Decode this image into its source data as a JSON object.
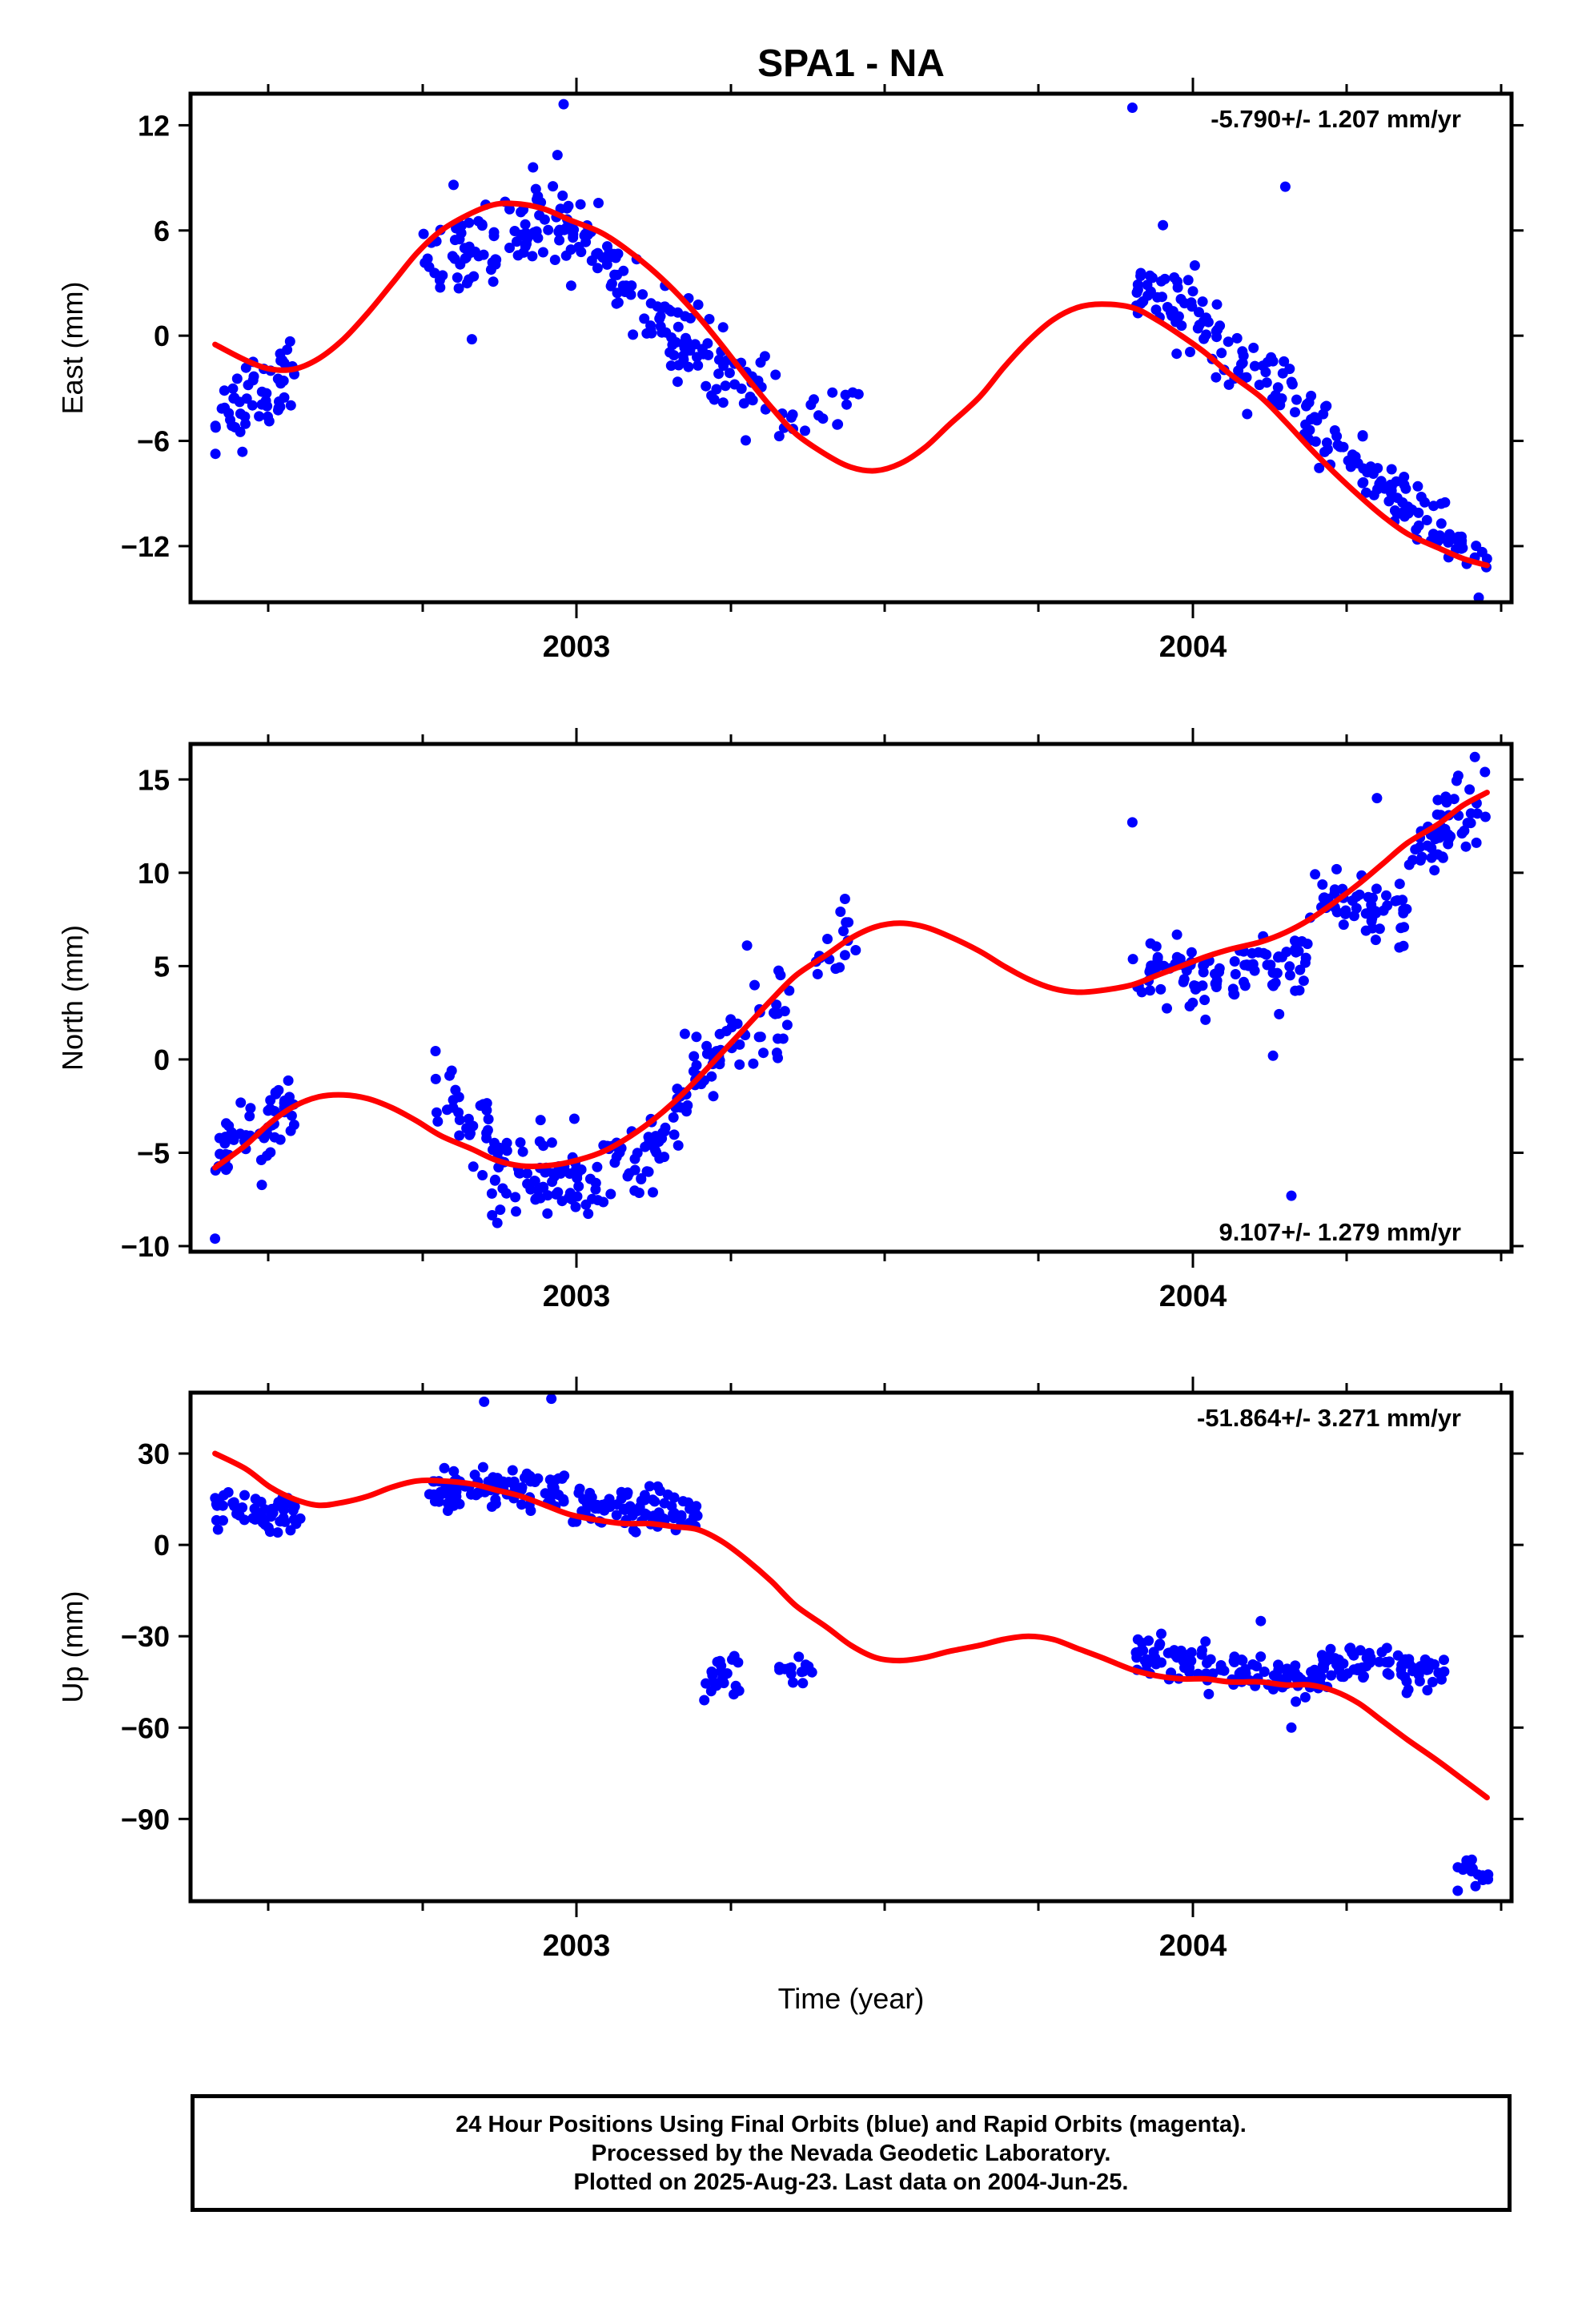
{
  "chart_data": {
    "type": "scatter",
    "title": "SPA1 - NA",
    "xlabel": "Time (year)",
    "x_tick_labels": [
      "2003",
      "2004"
    ],
    "xlim": [
      2002.37,
      2004.53
    ],
    "panels": [
      {
        "name": "east",
        "ylabel": "East (mm)",
        "ylim": [
          -15.2,
          13.8
        ],
        "yticks": [
          12,
          6,
          0,
          -6,
          -12
        ],
        "ytick_labels": [
          "12",
          "6",
          "0",
          "−12"
        ],
        "ytick_labels_full": [
          "12",
          "6",
          "0",
          "−6",
          "−12"
        ],
        "rate_label": "-5.790+/- 1.207 mm/yr",
        "rate_position": "top-right",
        "fit": {
          "x": [
            2002.41,
            2002.46,
            2002.5,
            2002.54,
            2002.58,
            2002.62,
            2002.66,
            2002.7,
            2002.74,
            2002.78,
            2002.83,
            2002.87,
            2002.91,
            2002.95,
            2002.99,
            2003.04,
            2003.08,
            2003.12,
            2003.16,
            2003.2,
            2003.24,
            2003.28,
            2003.32,
            2003.36,
            2003.41,
            2003.45,
            2003.49,
            2003.53,
            2003.57,
            2003.61,
            2003.66,
            2003.7,
            2003.74,
            2003.78,
            2003.82,
            2003.86,
            2003.91,
            2003.95,
            2003.99,
            2004.03,
            2004.07,
            2004.12,
            2004.16,
            2004.2,
            2004.24,
            2004.28,
            2004.32,
            2004.36,
            2004.41,
            2004.45,
            2004.49
          ],
          "y": [
            -0.5,
            -1.4,
            -1.9,
            -1.9,
            -1.3,
            -0.2,
            1.3,
            3.0,
            4.7,
            6.0,
            7.0,
            7.5,
            7.5,
            7.2,
            6.6,
            5.9,
            5.0,
            3.9,
            2.6,
            1.1,
            -0.6,
            -2.4,
            -4.1,
            -5.6,
            -6.8,
            -7.5,
            -7.7,
            -7.3,
            -6.4,
            -5.1,
            -3.5,
            -1.8,
            -0.3,
            0.9,
            1.6,
            1.8,
            1.6,
            0.9,
            0.0,
            -1.0,
            -2.2,
            -3.5,
            -4.9,
            -6.4,
            -7.8,
            -9.1,
            -10.3,
            -11.3,
            -12.1,
            -12.7,
            -13.1
          ]
        },
        "clusters": [
          {
            "x0": 2002.41,
            "x1": 2002.54,
            "y0": -4.8,
            "y1": -1.7,
            "n": 55,
            "sd": 1.6
          },
          {
            "x0": 2002.75,
            "x1": 2002.99,
            "y0": 3.4,
            "y1": 7.2,
            "n": 90,
            "sd": 1.5
          },
          {
            "x0": 2002.99,
            "x1": 2003.2,
            "y0": 6.6,
            "y1": -1.5,
            "n": 90,
            "sd": 1.4
          },
          {
            "x0": 2003.2,
            "x1": 2003.35,
            "y0": -1.5,
            "y1": -4.2,
            "n": 40,
            "sd": 1.6
          },
          {
            "x0": 2003.35,
            "x1": 2003.47,
            "y0": -5.0,
            "y1": -3.8,
            "n": 15,
            "sd": 1.2
          },
          {
            "x0": 2003.91,
            "x1": 2004.03,
            "y0": 3.0,
            "y1": 1.0,
            "n": 45,
            "sd": 1.3
          },
          {
            "x0": 2004.03,
            "x1": 2004.24,
            "y0": 0.0,
            "y1": -6.0,
            "n": 70,
            "sd": 1.4
          },
          {
            "x0": 2004.24,
            "x1": 2004.49,
            "y0": -6.4,
            "y1": -13.2,
            "n": 90,
            "sd": 1.1
          }
        ],
        "outliers": [
          [
            2002.98,
            13.2
          ],
          [
            2003.91,
            13.0
          ],
          [
            2004.16,
            8.5
          ],
          [
            2002.8,
            8.6
          ],
          [
            2002.97,
            10.3
          ],
          [
            2002.93,
            9.6
          ],
          [
            2003.96,
            6.3
          ],
          [
            2002.83,
            -0.2
          ]
        ]
      },
      {
        "name": "north",
        "ylabel": "North (mm)",
        "ylim": [
          -10.3,
          16.9
        ],
        "yticks": [
          15,
          10,
          5,
          0,
          -5,
          -10
        ],
        "ytick_labels_full": [
          "15",
          "10",
          "5",
          "0",
          "−5",
          "−10"
        ],
        "rate_label": "9.107+/- 1.279 mm/yr",
        "rate_position": "bottom-right",
        "fit": {
          "x": [
            2002.41,
            2002.46,
            2002.5,
            2002.54,
            2002.58,
            2002.62,
            2002.66,
            2002.7,
            2002.74,
            2002.78,
            2002.83,
            2002.87,
            2002.91,
            2002.95,
            2002.99,
            2003.04,
            2003.08,
            2003.12,
            2003.16,
            2003.2,
            2003.24,
            2003.28,
            2003.32,
            2003.36,
            2003.41,
            2003.45,
            2003.49,
            2003.53,
            2003.57,
            2003.61,
            2003.66,
            2003.7,
            2003.74,
            2003.78,
            2003.82,
            2003.86,
            2003.91,
            2003.95,
            2003.99,
            2004.03,
            2004.07,
            2004.12,
            2004.16,
            2004.2,
            2004.24,
            2004.28,
            2004.32,
            2004.36,
            2004.41,
            2004.45,
            2004.49
          ],
          "y": [
            -5.8,
            -4.6,
            -3.4,
            -2.5,
            -2.0,
            -1.9,
            -2.1,
            -2.6,
            -3.3,
            -4.1,
            -4.8,
            -5.4,
            -5.7,
            -5.7,
            -5.5,
            -5.0,
            -4.3,
            -3.4,
            -2.3,
            -1.0,
            0.4,
            1.8,
            3.2,
            4.5,
            5.6,
            6.5,
            7.1,
            7.3,
            7.1,
            6.6,
            5.8,
            5.0,
            4.3,
            3.8,
            3.6,
            3.7,
            4.0,
            4.5,
            5.0,
            5.5,
            5.9,
            6.3,
            6.8,
            7.5,
            8.4,
            9.4,
            10.5,
            11.6,
            12.6,
            13.6,
            14.3
          ]
        },
        "clusters": [
          {
            "x0": 2002.41,
            "x1": 2002.54,
            "y0": -5.5,
            "y1": -2.5,
            "n": 55,
            "sd": 1.4
          },
          {
            "x0": 2002.76,
            "x1": 2002.86,
            "y0": -2.4,
            "y1": -3.8,
            "n": 30,
            "sd": 1.3
          },
          {
            "x0": 2002.86,
            "x1": 2003.02,
            "y0": -6.5,
            "y1": -6.0,
            "n": 70,
            "sd": 1.6
          },
          {
            "x0": 2003.02,
            "x1": 2003.16,
            "y0": -6.5,
            "y1": -4.2,
            "n": 50,
            "sd": 1.3
          },
          {
            "x0": 2003.16,
            "x1": 2003.26,
            "y0": -3.0,
            "y1": 1.5,
            "n": 40,
            "sd": 1.5
          },
          {
            "x0": 2003.26,
            "x1": 2003.35,
            "y0": 1.5,
            "y1": 2.5,
            "n": 25,
            "sd": 1.4
          },
          {
            "x0": 2003.39,
            "x1": 2003.46,
            "y0": 5.0,
            "y1": 6.5,
            "n": 15,
            "sd": 1.2
          },
          {
            "x0": 2003.91,
            "x1": 2004.03,
            "y0": 5.0,
            "y1": 4.0,
            "n": 45,
            "sd": 1.2
          },
          {
            "x0": 2004.03,
            "x1": 2004.2,
            "y0": 4.5,
            "y1": 5.5,
            "n": 55,
            "sd": 1.3
          },
          {
            "x0": 2004.2,
            "x1": 2004.36,
            "y0": 8.5,
            "y1": 8.0,
            "n": 55,
            "sd": 1.3
          },
          {
            "x0": 2004.36,
            "x1": 2004.49,
            "y0": 10.5,
            "y1": 14.5,
            "n": 50,
            "sd": 1.2
          }
        ],
        "outliers": [
          [
            2002.41,
            -9.6
          ],
          [
            2003.91,
            12.7
          ],
          [
            2004.17,
            -7.3
          ],
          [
            2004.14,
            0.2
          ],
          [
            2003.44,
            8.6
          ],
          [
            2003.28,
            6.1
          ],
          [
            2004.47,
            16.2
          ],
          [
            2004.31,
            14.0
          ]
        ]
      },
      {
        "name": "up",
        "ylabel": "Up (mm)",
        "ylim": [
          -117,
          50
        ],
        "yticks": [
          30,
          0,
          -30,
          -60,
          -90
        ],
        "ytick_labels_full": [
          "30",
          "0",
          "−30",
          "−60",
          "−90"
        ],
        "rate_label": "-51.864+/- 3.271 mm/yr",
        "rate_position": "top-right",
        "fit": {
          "x": [
            2002.41,
            2002.46,
            2002.5,
            2002.54,
            2002.58,
            2002.62,
            2002.66,
            2002.7,
            2002.74,
            2002.78,
            2002.83,
            2002.87,
            2002.91,
            2002.95,
            2002.99,
            2003.04,
            2003.08,
            2003.12,
            2003.16,
            2003.2,
            2003.24,
            2003.28,
            2003.32,
            2003.36,
            2003.41,
            2003.45,
            2003.49,
            2003.53,
            2003.57,
            2003.61,
            2003.66,
            2003.7,
            2003.74,
            2003.78,
            2003.82,
            2003.86,
            2003.91,
            2003.95,
            2003.99,
            2004.03,
            2004.07,
            2004.12,
            2004.16,
            2004.2,
            2004.24,
            2004.28,
            2004.32,
            2004.36,
            2004.41,
            2004.45,
            2004.49
          ],
          "y": [
            30,
            25,
            19,
            15,
            13,
            14,
            16,
            19,
            21,
            21,
            20,
            18,
            16,
            13,
            10,
            8,
            7,
            7,
            6,
            5,
            1,
            -5,
            -12,
            -20,
            -27,
            -33,
            -37,
            -38,
            -37,
            -35,
            -33,
            -31,
            -30,
            -31,
            -34,
            -37,
            -41,
            -43,
            -44,
            -44,
            -45,
            -45,
            -46,
            -46,
            -48,
            -52,
            -58,
            -64,
            -71,
            -77,
            -83
          ]
        },
        "clusters": [
          {
            "x0": 2002.41,
            "x1": 2002.55,
            "y0": 12,
            "y1": 8,
            "n": 60,
            "sd": 5
          },
          {
            "x0": 2002.76,
            "x1": 2002.99,
            "y0": 18,
            "y1": 18,
            "n": 90,
            "sd": 4.5
          },
          {
            "x0": 2002.99,
            "x1": 2003.2,
            "y0": 12,
            "y1": 10,
            "n": 85,
            "sd": 5
          },
          {
            "x0": 2003.21,
            "x1": 2003.27,
            "y0": -43,
            "y1": -42,
            "n": 20,
            "sd": 3.5
          },
          {
            "x0": 2003.33,
            "x1": 2003.39,
            "y0": -44,
            "y1": -40,
            "n": 15,
            "sd": 3.5
          },
          {
            "x0": 2003.91,
            "x1": 2004.03,
            "y0": -35,
            "y1": -39,
            "n": 45,
            "sd": 4.5
          },
          {
            "x0": 2004.03,
            "x1": 2004.22,
            "y0": -42,
            "y1": -45,
            "n": 65,
            "sd": 4
          },
          {
            "x0": 2004.22,
            "x1": 2004.42,
            "y0": -38,
            "y1": -42,
            "n": 75,
            "sd": 4
          },
          {
            "x0": 2004.44,
            "x1": 2004.5,
            "y0": -106,
            "y1": -109,
            "n": 14,
            "sd": 3
          }
        ],
        "outliers": [
          [
            2002.85,
            47
          ],
          [
            2002.96,
            48
          ],
          [
            2004.12,
            -25
          ],
          [
            2003.21,
            -51
          ],
          [
            2004.17,
            -60
          ]
        ]
      }
    ],
    "colors": {
      "points": "#0000ff",
      "fit": "#ff0000",
      "axes": "#000000"
    }
  },
  "footer": {
    "line1": "24 Hour Positions Using Final Orbits (blue) and Rapid Orbits (magenta).",
    "line2": "Processed by the Nevada Geodetic Laboratory.",
    "line3": "Plotted on 2025-Aug-23. Last data on 2004-Jun-25."
  }
}
